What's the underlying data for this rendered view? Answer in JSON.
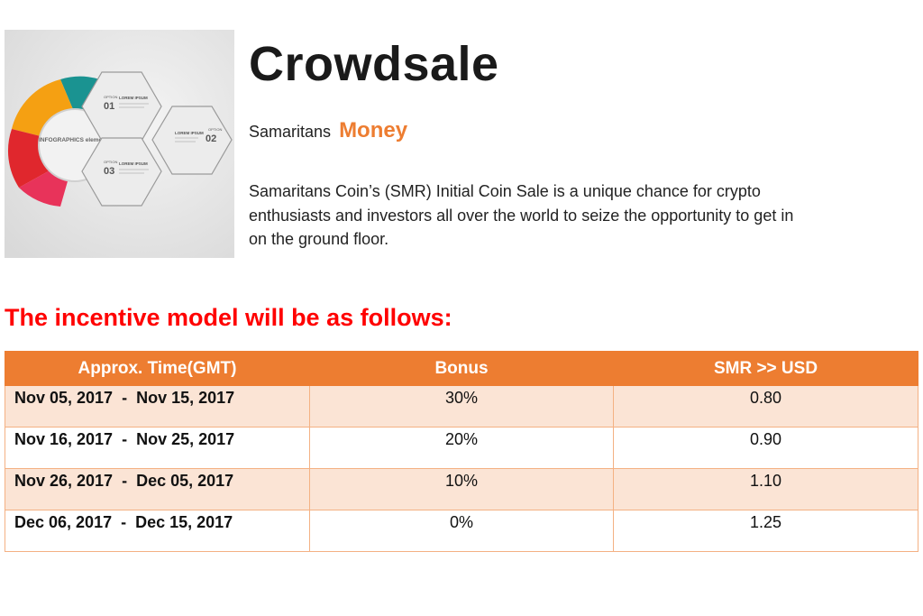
{
  "hero_image": {
    "infographic_label": "INFOGRAPHICS elements",
    "hexagons": [
      {
        "option": "OPTION",
        "number": "01",
        "caption": "LOREM IPSUM"
      },
      {
        "option": "OPTION",
        "number": "02",
        "caption": "LOREM IPSUM"
      },
      {
        "option": "OPTION",
        "number": "03",
        "caption": "LOREM IPSUM"
      }
    ],
    "colors": {
      "teal": "#1a9391",
      "orange": "#f5a012",
      "red": "#e0272d",
      "pink": "#e8335a"
    }
  },
  "header": {
    "title": "Crowdsale",
    "subtitle_prefix": "Samaritans",
    "subtitle_accent": "Money",
    "description": "Samaritans Coin’s (SMR) Initial Coin Sale is a unique chance for crypto enthusiasts and investors all over the world to seize the opportunity to get in on the ground floor."
  },
  "incentive": {
    "heading": "The incentive model will be as follows:",
    "columns": [
      "Approx. Time(GMT)",
      "Bonus",
      "SMR >> USD"
    ],
    "rows": [
      {
        "period": "Nov 05, 2017  -  Nov 15, 2017",
        "bonus": "30%",
        "rate": "0.80"
      },
      {
        "period": "Nov 16, 2017  -  Nov 25, 2017",
        "bonus": "20%",
        "rate": "0.90"
      },
      {
        "period": "Nov 26, 2017  -  Dec 05, 2017",
        "bonus": "10%",
        "rate": "1.10"
      },
      {
        "period": "Dec 06, 2017  -  Dec 15, 2017",
        "bonus": "0%",
        "rate": "1.25"
      }
    ],
    "colors": {
      "header_bg": "#ed7d31",
      "heading": "#ff0000",
      "row_alt": "#fbe4d5"
    }
  }
}
